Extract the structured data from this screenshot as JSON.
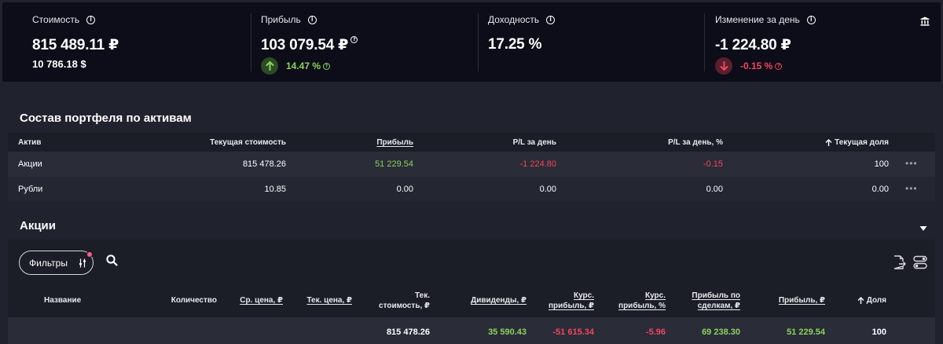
{
  "summary": {
    "value": {
      "label": "Стоимость",
      "amount": "815 489.11 ₽",
      "secondary": "10 786.18 $"
    },
    "profit": {
      "label": "Прибыль",
      "amount": "103 079.54 ₽",
      "percent": "14.47 %"
    },
    "yield": {
      "label": "Доходность",
      "amount": "17.25 %"
    },
    "day_change": {
      "label": "Изменение за день",
      "amount": "-1 224.80 ₽",
      "percent": "-0.15 %"
    },
    "icons": {
      "info": "info-icon",
      "help": "question-icon",
      "bank": "bank-icon"
    }
  },
  "composition": {
    "title": "Состав портфеля по активам",
    "headers": {
      "asset": "Актив",
      "current_value": "Текущая стоимость",
      "profit": "Прибыль",
      "pl_day": "P/L за день",
      "pl_day_pct": "P/L за день, %",
      "share": "Текущая доля"
    },
    "rows": [
      {
        "asset": "Акции",
        "current_value": "815 478.26",
        "profit": "51 229.54",
        "pl_day": "-1 224.80",
        "pl_day_pct": "-0.15",
        "share": "100"
      },
      {
        "asset": "Рубли",
        "current_value": "10.85",
        "profit": "0.00",
        "pl_day": "0.00",
        "pl_day_pct": "0.00",
        "share": "0.00"
      }
    ]
  },
  "stocks": {
    "title": "Акции",
    "filter_label": "Фильтры",
    "headers": {
      "name": "Название",
      "quantity": "Количество",
      "avg_price": "Ср. цена, ₽",
      "cur_price": "Тек. цена, ₽",
      "cur_value_1": "Тек.",
      "cur_value_2": "стоимость, ₽",
      "dividends": "Дивиденды, ₽",
      "rate_profit_1": "Курс.",
      "rate_profit_2": "прибыль, ₽",
      "rate_profit_pct_1": "Курс.",
      "rate_profit_pct_2": "прибыль, %",
      "deal_profit_1": "Прибыль по",
      "deal_profit_2": "сделкам, ₽",
      "profit": "Прибыль, ₽",
      "share": "Доля"
    },
    "total": {
      "cur_value": "815 478.26",
      "dividends": "35 590.43",
      "rate_profit": "-51 615.34",
      "rate_profit_pct": "-5.96",
      "deal_profit": "69 238.30",
      "profit": "51 229.54",
      "share": "100"
    }
  },
  "colors": {
    "positive": "#8bd35c",
    "negative": "#f2465b",
    "background": "#20222d",
    "panel": "#0c0d18"
  }
}
